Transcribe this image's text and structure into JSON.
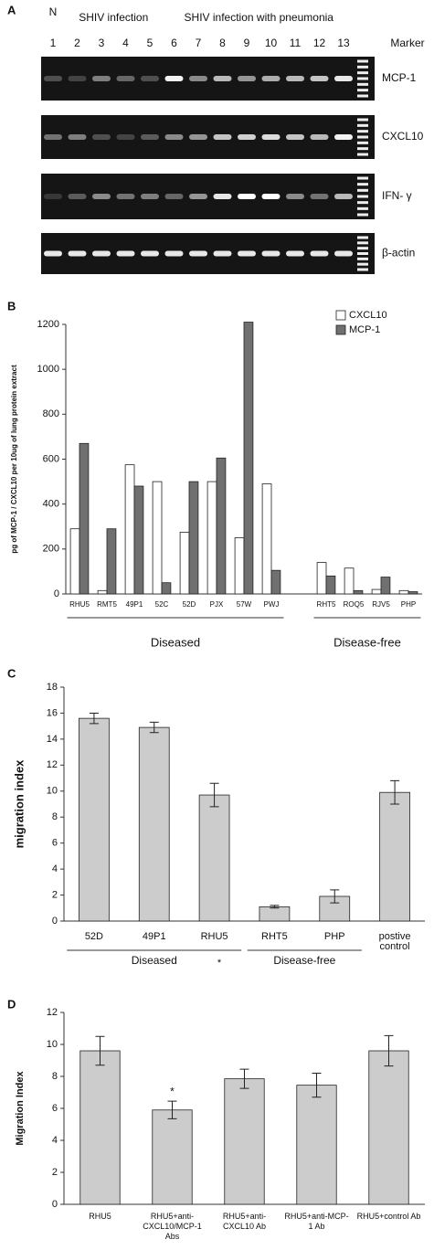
{
  "gel": {
    "panel": "A",
    "lane_header": "N",
    "lanes": [
      1,
      2,
      3,
      4,
      5,
      6,
      7,
      8,
      9,
      10,
      11,
      12,
      13
    ],
    "marker_label": "Marker",
    "groups": [
      "SHIV infection",
      "SHIV infection with pneumonia"
    ],
    "rows": [
      "MCP-1",
      "CXCL10",
      "IFN- γ",
      "β-actin"
    ]
  },
  "chart_data": [
    {
      "type": "grouped_bar",
      "panel": "B",
      "y_label": "pg of MCP-1 / CXCL10 per 10ug of lung protein extract",
      "categories": [
        "RHU5",
        "RMT5",
        "49P1",
        "52C",
        "52D",
        "PJX",
        "57W",
        "PWJ",
        null,
        "RHT5",
        "ROQ5",
        "RJV5",
        "PHP"
      ],
      "series": [
        {
          "name": "CXCL10",
          "color": "#ffffff",
          "values": [
            290,
            15,
            575,
            500,
            275,
            500,
            250,
            490,
            null,
            140,
            115,
            20,
            15
          ]
        },
        {
          "name": "MCP-1",
          "color": "#707070",
          "values": [
            670,
            290,
            480,
            50,
            500,
            605,
            1210,
            105,
            null,
            80,
            15,
            75,
            10
          ]
        }
      ],
      "ylim": [
        0,
        1200
      ],
      "yticks": [
        0,
        200,
        400,
        600,
        800,
        1000,
        1200
      ],
      "group_labels": [
        "Diseased",
        "Disease-free"
      ],
      "legend": "top-right"
    },
    {
      "type": "bar",
      "panel": "C",
      "y_label": "migration index",
      "categories": [
        "52D",
        "49P1",
        "RHU5",
        "RHT5",
        "PHP",
        "postive control"
      ],
      "values": [
        15.6,
        14.9,
        9.7,
        1.1,
        1.9,
        9.9
      ],
      "errors": [
        0.4,
        0.4,
        0.9,
        0.1,
        0.5,
        0.9
      ],
      "color": "#cccccc",
      "ylim": [
        0,
        18
      ],
      "yticks": [
        0,
        2,
        4,
        6,
        8,
        10,
        12,
        14,
        16,
        18
      ],
      "group_labels": [
        "Diseased",
        "Disease-free"
      ],
      "annotation": "*"
    },
    {
      "type": "bar",
      "panel": "D",
      "y_label": "Migration Index",
      "categories": [
        "RHU5",
        "RHU5+anti-CXCL10/MCP-1 Abs",
        "RHU5+anti-CXCL10 Ab",
        "RHU5+anti-MCP-1 Ab",
        "RHU5+control Ab"
      ],
      "values": [
        9.6,
        5.9,
        7.85,
        7.45,
        9.6
      ],
      "errors": [
        0.9,
        0.55,
        0.6,
        0.75,
        0.95
      ],
      "color": "#cccccc",
      "ylim": [
        0,
        12
      ],
      "yticks": [
        0,
        2,
        4,
        6,
        8,
        10,
        12
      ],
      "annotation": "*"
    }
  ]
}
